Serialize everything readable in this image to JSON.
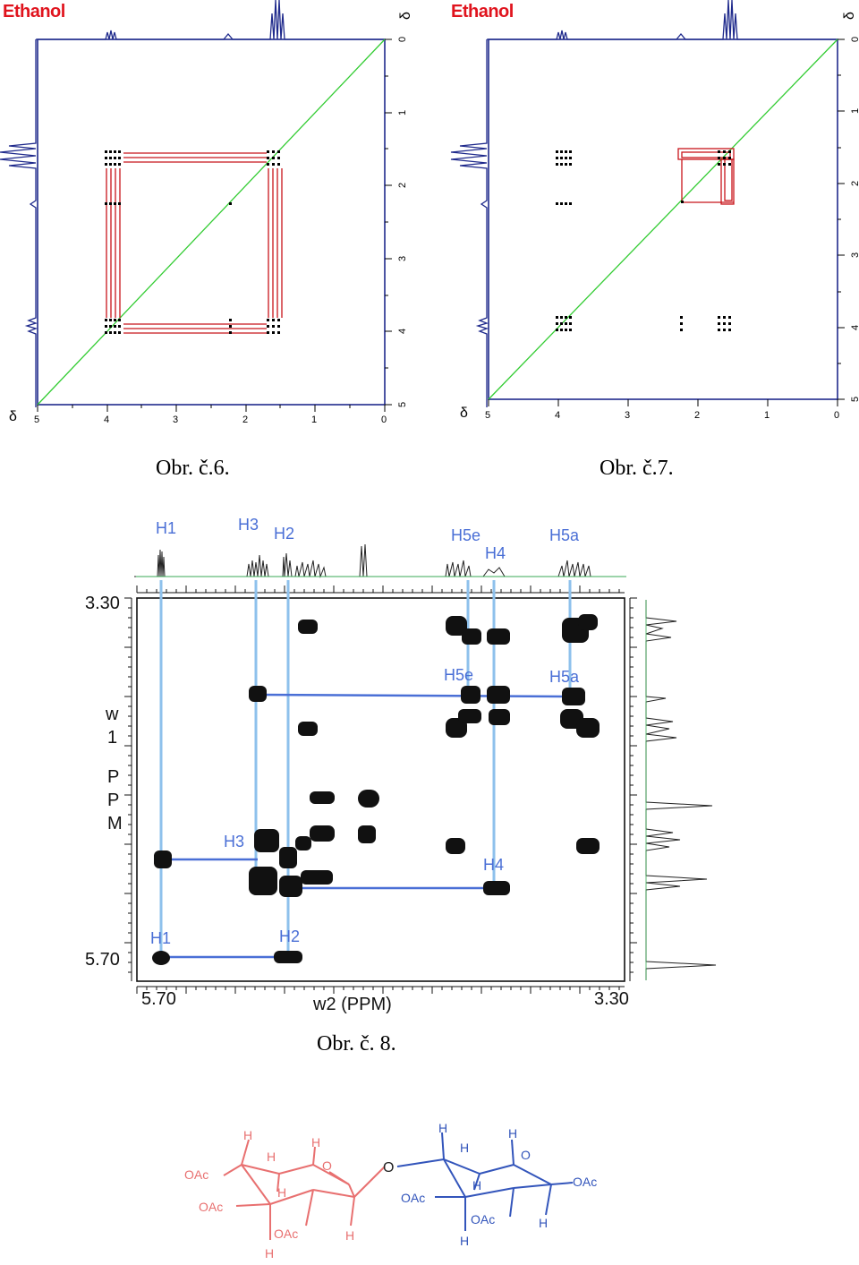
{
  "figure6": {
    "sample_label": "Ethanol",
    "caption": "Obr. č.6.",
    "axis_symbol": "δ",
    "x_ticks": [
      "5",
      "4",
      "3",
      "2",
      "1",
      "0"
    ],
    "y_ticks": [
      "0",
      "1",
      "2",
      "3",
      "4",
      "5"
    ],
    "colors": {
      "frame": "#1f2a8c",
      "diagonal": "#33cc33",
      "lines": "#c8151b"
    }
  },
  "figure7": {
    "sample_label": "Ethanol",
    "caption": "Obr. č.7.",
    "axis_symbol": "δ",
    "x_ticks": [
      "5",
      "4",
      "3",
      "2",
      "1",
      "0"
    ],
    "y_ticks": [
      "0",
      "1",
      "2",
      "3",
      "4",
      "5"
    ]
  },
  "figure8": {
    "caption": "Obr. č. 8.",
    "x_axis_label": "w2 (PPM)",
    "y_axis_letters": [
      "w",
      "1",
      "P",
      "P",
      "M"
    ],
    "x_tick_left": "5.70",
    "x_tick_right": "3.30",
    "y_tick_top": "3.30",
    "y_tick_bottom": "5.70",
    "top_peak_labels": [
      "H1",
      "H3",
      "H2",
      "H5e",
      "H4",
      "H5a"
    ],
    "inner_labels": [
      "H5e",
      "H5a",
      "H3",
      "H4",
      "H1",
      "H2"
    ],
    "color_annot": "#4a6fd6"
  },
  "structure": {
    "left_ring_color": "#e87070",
    "right_ring_color": "#3355bb",
    "left_labels": [
      "H",
      "H",
      "H",
      "O",
      "OAc",
      "OAc",
      "H",
      "OAc",
      "H",
      "H"
    ],
    "linker": "O",
    "right_labels": [
      "H",
      "H",
      "H",
      "O",
      "OAc",
      "H",
      "OAc",
      "OAc",
      "H",
      "H"
    ]
  }
}
